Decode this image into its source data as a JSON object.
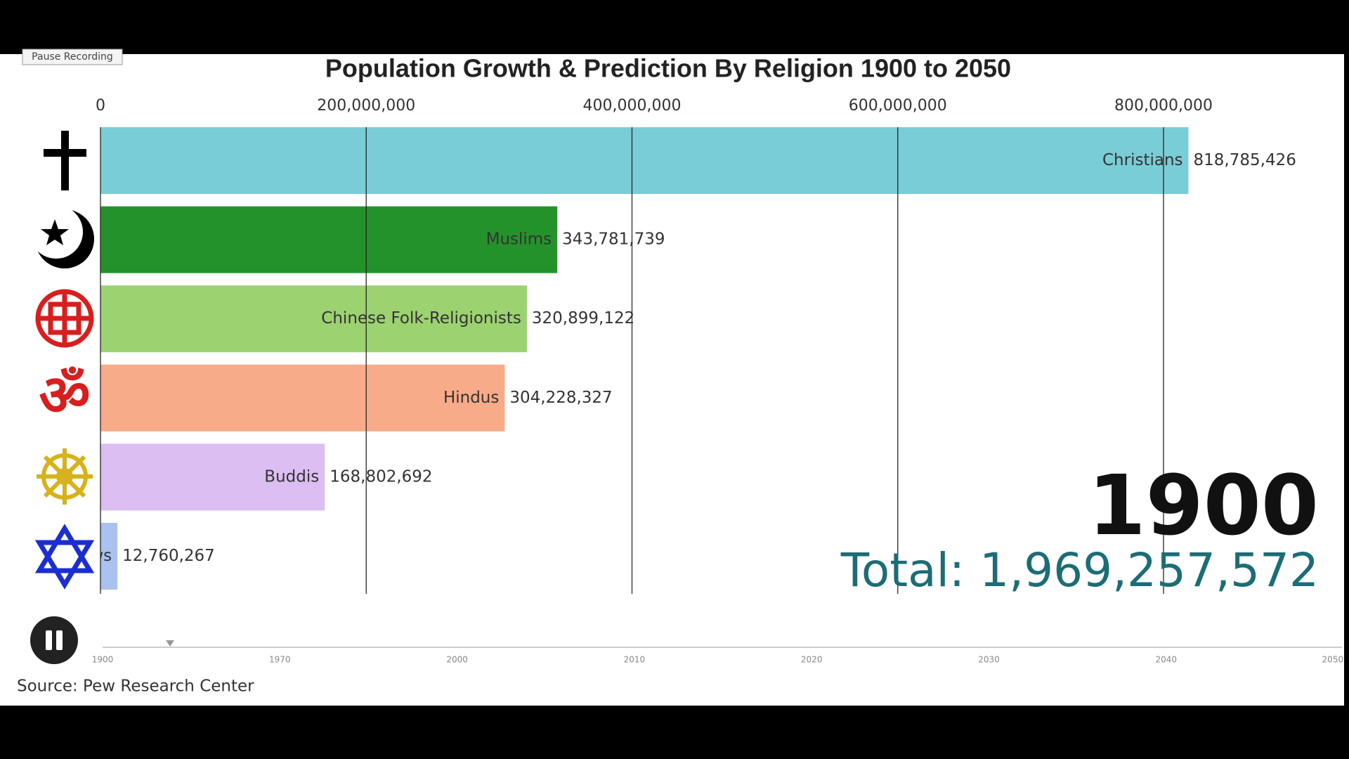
{
  "chart_data": {
    "type": "bar",
    "orientation": "horizontal",
    "title": "Population Growth & Prediction By Religion 1900 to 2050",
    "categories": [
      "Christians",
      "Muslims",
      "Chinese Folk-Religionists",
      "Hindus",
      "Buddis",
      "Jews"
    ],
    "values": [
      818785426,
      343781739,
      320899122,
      304228327,
      168802692,
      12760267
    ],
    "value_labels": [
      "818,785,426",
      "343,781,739",
      "320,899,122",
      "304,228,327",
      "168,802,692",
      "12,760,267"
    ],
    "colors": [
      "#79cdd6",
      "#24922a",
      "#9cd270",
      "#f8ab88",
      "#dcbef2",
      "#a9c2f0"
    ],
    "xlim": [
      0,
      800000000
    ],
    "xticks": [
      0,
      {
        "value": 200000000,
        "label": "200,000,000"
      },
      {
        "value": 400000000,
        "label": "400,000,000"
      },
      {
        "value": 600000000,
        "label": "600,000,000"
      },
      {
        "value": 800000000,
        "label": "800,000,000"
      }
    ],
    "grid": true,
    "year": "1900",
    "total": "Total: 1,969,257,572",
    "source": "Source: Pew Research Center"
  },
  "timeline": {
    "labels": [
      "1900",
      "1970",
      "2000",
      "2010",
      "2020",
      "2030",
      "2040",
      "2050"
    ]
  },
  "button": "Pause Recording"
}
